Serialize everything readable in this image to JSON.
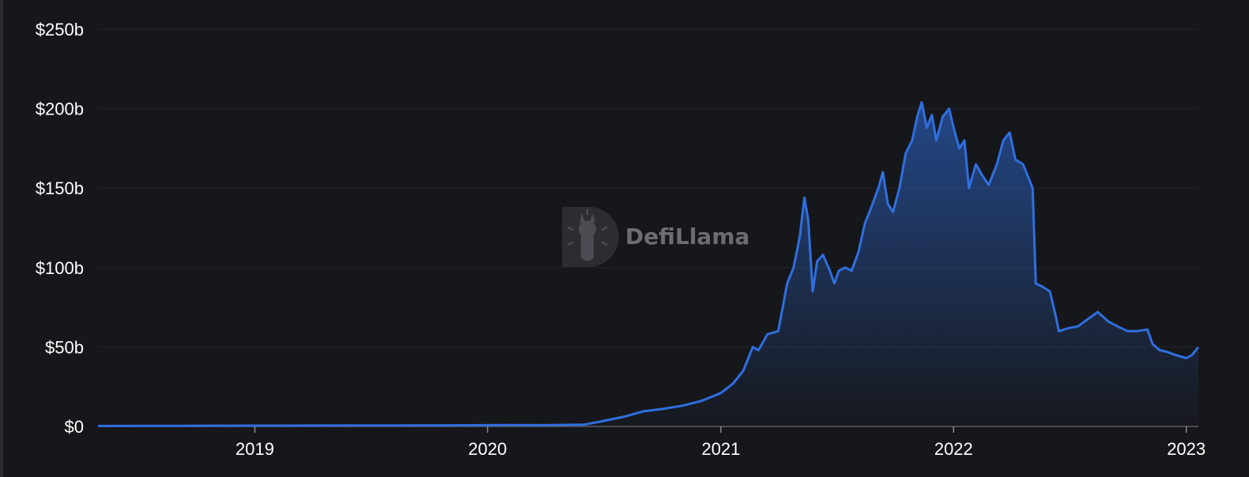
{
  "watermark": {
    "brand_name": "DefiLlama"
  },
  "colors": {
    "background": "#16171a",
    "line": "#2f6fe0",
    "grid": "#23252a",
    "text": "#ffffff"
  },
  "chart_data": {
    "type": "area",
    "title": "",
    "xlabel": "",
    "ylabel": "",
    "unit": "USD billions",
    "y_tick_labels": [
      "$0",
      "$50b",
      "$100b",
      "$150b",
      "$200b",
      "$250b"
    ],
    "y_tick_values": [
      0,
      50,
      100,
      150,
      200,
      250
    ],
    "x_tick_labels": [
      "2019",
      "2020",
      "2021",
      "2022",
      "2023"
    ],
    "x_tick_values": [
      "2019-01-01",
      "2020-01-01",
      "2021-01-01",
      "2022-01-01",
      "2023-01-01"
    ],
    "xlim": [
      "2018-04-30",
      "2023-01-20"
    ],
    "ylim": [
      0,
      250
    ],
    "grid": true,
    "legend": "none",
    "series": [
      {
        "values": [
          [
            "2018-04-30",
            0.3
          ],
          [
            "2018-09-01",
            0.4
          ],
          [
            "2019-01-01",
            0.5
          ],
          [
            "2019-06-01",
            0.6
          ],
          [
            "2019-11-01",
            0.7
          ],
          [
            "2020-02-01",
            0.9
          ],
          [
            "2020-04-01",
            0.8
          ],
          [
            "2020-06-01",
            1.2
          ],
          [
            "2020-07-01",
            3.5
          ],
          [
            "2020-08-01",
            6
          ],
          [
            "2020-09-01",
            9.5
          ],
          [
            "2020-10-01",
            11
          ],
          [
            "2020-11-01",
            13
          ],
          [
            "2020-12-01",
            16
          ],
          [
            "2021-01-01",
            21
          ],
          [
            "2021-01-20",
            27
          ],
          [
            "2021-02-05",
            35
          ],
          [
            "2021-02-20",
            50
          ],
          [
            "2021-03-01",
            48
          ],
          [
            "2021-03-15",
            58
          ],
          [
            "2021-04-01",
            60
          ],
          [
            "2021-04-15",
            90
          ],
          [
            "2021-04-25",
            100
          ],
          [
            "2021-05-05",
            120
          ],
          [
            "2021-05-12",
            144
          ],
          [
            "2021-05-18",
            130
          ],
          [
            "2021-05-25",
            85
          ],
          [
            "2021-06-01",
            104
          ],
          [
            "2021-06-10",
            108
          ],
          [
            "2021-06-20",
            99
          ],
          [
            "2021-06-28",
            90
          ],
          [
            "2021-07-05",
            98
          ],
          [
            "2021-07-15",
            100
          ],
          [
            "2021-07-25",
            98
          ],
          [
            "2021-08-05",
            110
          ],
          [
            "2021-08-15",
            128
          ],
          [
            "2021-08-25",
            138
          ],
          [
            "2021-09-05",
            150
          ],
          [
            "2021-09-12",
            160
          ],
          [
            "2021-09-20",
            140
          ],
          [
            "2021-09-28",
            135
          ],
          [
            "2021-10-08",
            150
          ],
          [
            "2021-10-18",
            172
          ],
          [
            "2021-10-28",
            180
          ],
          [
            "2021-11-05",
            195
          ],
          [
            "2021-11-12",
            204
          ],
          [
            "2021-11-20",
            188
          ],
          [
            "2021-11-28",
            196
          ],
          [
            "2021-12-05",
            180
          ],
          [
            "2021-12-15",
            195
          ],
          [
            "2021-12-25",
            200
          ],
          [
            "2022-01-01",
            188
          ],
          [
            "2022-01-10",
            175
          ],
          [
            "2022-01-18",
            180
          ],
          [
            "2022-01-25",
            150
          ],
          [
            "2022-02-05",
            165
          ],
          [
            "2022-02-15",
            158
          ],
          [
            "2022-02-25",
            152
          ],
          [
            "2022-03-10",
            165
          ],
          [
            "2022-03-20",
            180
          ],
          [
            "2022-03-30",
            185
          ],
          [
            "2022-04-08",
            168
          ],
          [
            "2022-04-20",
            165
          ],
          [
            "2022-05-05",
            150
          ],
          [
            "2022-05-10",
            90
          ],
          [
            "2022-05-20",
            88
          ],
          [
            "2022-06-01",
            85
          ],
          [
            "2022-06-10",
            70
          ],
          [
            "2022-06-15",
            60
          ],
          [
            "2022-07-01",
            62
          ],
          [
            "2022-07-15",
            63
          ],
          [
            "2022-08-01",
            68
          ],
          [
            "2022-08-15",
            72
          ],
          [
            "2022-09-01",
            66
          ],
          [
            "2022-09-15",
            63
          ],
          [
            "2022-10-01",
            60
          ],
          [
            "2022-10-15",
            60
          ],
          [
            "2022-11-01",
            61
          ],
          [
            "2022-11-09",
            52
          ],
          [
            "2022-11-20",
            48
          ],
          [
            "2022-12-01",
            47
          ],
          [
            "2022-12-15",
            45
          ],
          [
            "2023-01-01",
            43
          ],
          [
            "2023-01-10",
            45
          ],
          [
            "2023-01-20",
            50
          ]
        ]
      }
    ]
  }
}
